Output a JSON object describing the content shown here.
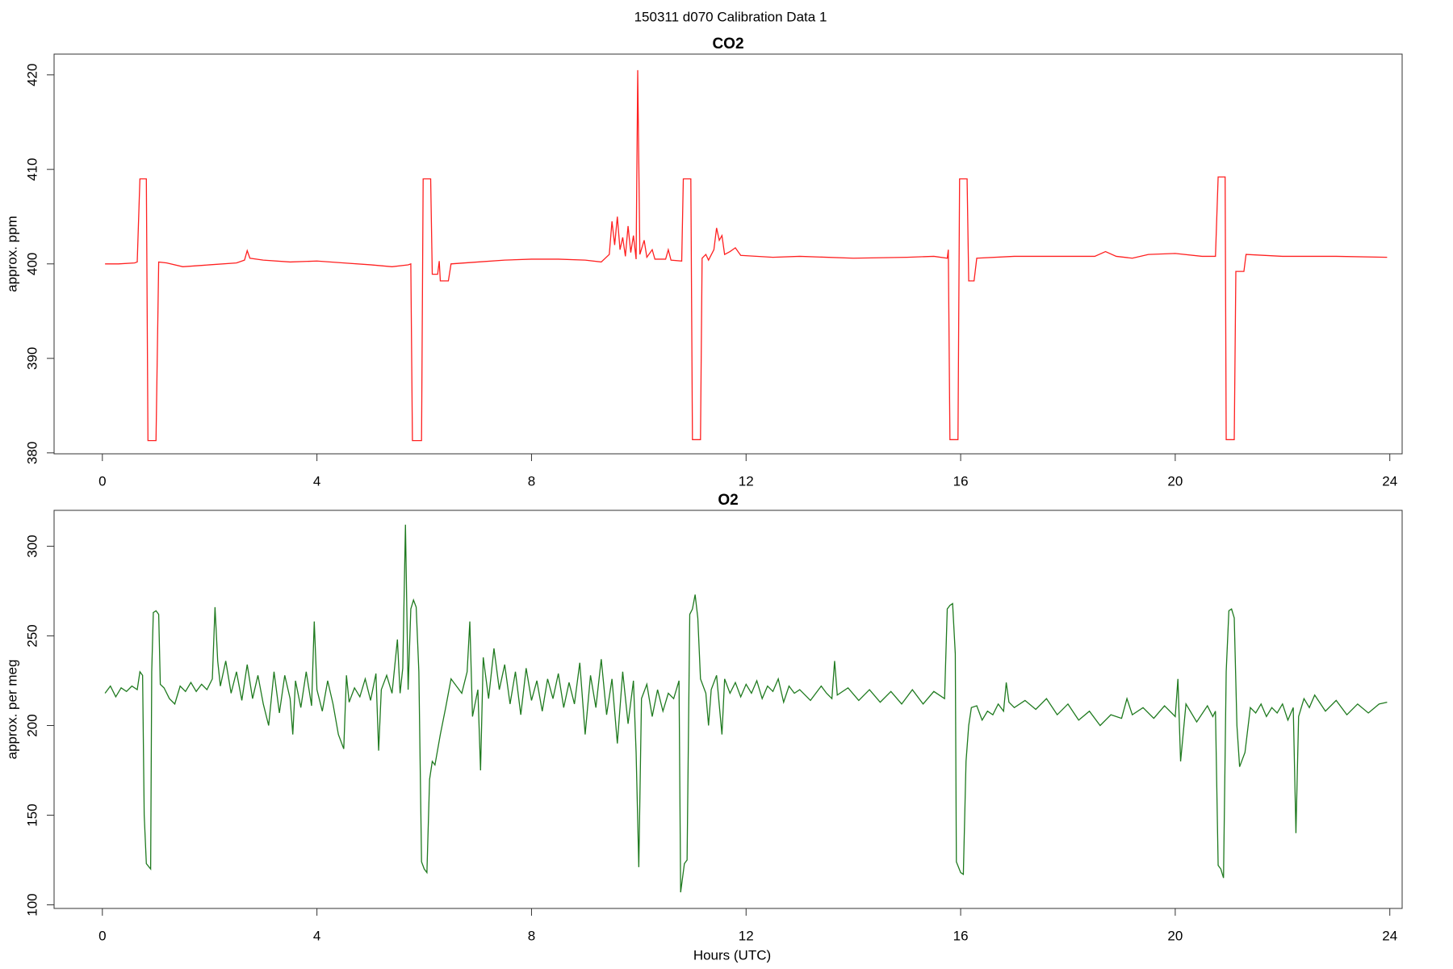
{
  "title": "150311   d070   Calibration Data 1",
  "chart_data": [
    {
      "type": "line",
      "title": "CO2",
      "y_label": "approx. ppm",
      "color": "#ff2020",
      "xlim": [
        -0.9,
        24.23
      ],
      "ylim": [
        379.9,
        422.2
      ],
      "xticks": [
        0,
        4,
        8,
        12,
        16,
        20,
        24
      ],
      "yticks": [
        380,
        390,
        400,
        410,
        420
      ],
      "x": [
        0.05,
        0.3,
        0.6,
        0.65,
        0.7,
        0.82,
        0.85,
        1.0,
        1.05,
        1.2,
        1.5,
        2.0,
        2.5,
        2.65,
        2.7,
        2.75,
        3.0,
        3.5,
        4.0,
        4.5,
        5.0,
        5.4,
        5.7,
        5.75,
        5.78,
        5.95,
        5.98,
        6.12,
        6.15,
        6.25,
        6.28,
        6.3,
        6.45,
        6.5,
        7.0,
        7.5,
        8.0,
        8.5,
        9.0,
        9.3,
        9.45,
        9.5,
        9.55,
        9.6,
        9.65,
        9.7,
        9.75,
        9.8,
        9.85,
        9.9,
        9.95,
        9.98,
        10.02,
        10.1,
        10.15,
        10.25,
        10.3,
        10.5,
        10.55,
        10.6,
        10.8,
        10.83,
        10.97,
        11.0,
        11.15,
        11.18,
        11.25,
        11.3,
        11.4,
        11.45,
        11.5,
        11.55,
        11.6,
        11.7,
        11.8,
        11.9,
        12.5,
        13,
        14,
        15,
        15.5,
        15.75,
        15.77,
        15.8,
        15.95,
        15.98,
        16.12,
        16.15,
        16.25,
        16.3,
        17,
        18,
        18.5,
        18.7,
        18.9,
        19.2,
        19.5,
        20,
        20.5,
        20.75,
        20.8,
        20.93,
        20.95,
        21.1,
        21.13,
        21.28,
        21.32,
        22,
        23,
        23.95
      ],
      "values": [
        400,
        400,
        400.1,
        400.2,
        409,
        409,
        381.3,
        381.3,
        400.2,
        400.1,
        399.7,
        399.9,
        400.1,
        400.4,
        401.4,
        400.6,
        400.4,
        400.2,
        400.3,
        400.1,
        399.9,
        399.7,
        399.9,
        400,
        381.3,
        381.3,
        409,
        409,
        398.9,
        398.9,
        400.3,
        398.2,
        398.2,
        400,
        400.2,
        400.4,
        400.5,
        400.5,
        400.4,
        400.2,
        401,
        404.5,
        402,
        405,
        401.5,
        402.8,
        400.8,
        404,
        401.2,
        403,
        400.5,
        420.5,
        401,
        402.5,
        400.7,
        401.5,
        400.5,
        400.5,
        401.5,
        400.4,
        400.3,
        409,
        409,
        381.4,
        381.4,
        400.6,
        401,
        400.4,
        401.5,
        403.8,
        402.5,
        403,
        401,
        401.3,
        401.7,
        400.9,
        400.7,
        400.8,
        400.6,
        400.7,
        400.8,
        400.6,
        401.5,
        381.4,
        381.4,
        409,
        409,
        398.2,
        398.2,
        400.6,
        400.8,
        400.8,
        400.8,
        401.3,
        400.8,
        400.6,
        401,
        401.1,
        400.8,
        400.8,
        409.2,
        409.2,
        381.4,
        381.4,
        399.2,
        399.2,
        401,
        400.8,
        400.8,
        400.7
      ]
    },
    {
      "type": "line",
      "title": "O2",
      "y_label": "approx. per meg",
      "x_label": "Hours (UTC)",
      "color": "#1f7a1f",
      "xlim": [
        -0.9,
        24.23
      ],
      "ylim": [
        98,
        320
      ],
      "xticks": [
        0,
        4,
        8,
        12,
        16,
        20,
        24
      ],
      "yticks": [
        100,
        150,
        200,
        250,
        300
      ],
      "x": [
        0.05,
        0.15,
        0.25,
        0.35,
        0.45,
        0.55,
        0.65,
        0.7,
        0.75,
        0.78,
        0.82,
        0.9,
        0.92,
        0.95,
        1.0,
        1.05,
        1.08,
        1.15,
        1.25,
        1.35,
        1.45,
        1.55,
        1.65,
        1.75,
        1.85,
        1.95,
        2.05,
        2.1,
        2.15,
        2.2,
        2.3,
        2.4,
        2.5,
        2.6,
        2.7,
        2.8,
        2.9,
        3.0,
        3.1,
        3.2,
        3.3,
        3.4,
        3.5,
        3.55,
        3.6,
        3.7,
        3.8,
        3.9,
        3.95,
        4.0,
        4.1,
        4.2,
        4.3,
        4.4,
        4.5,
        4.55,
        4.6,
        4.7,
        4.8,
        4.9,
        5.0,
        5.1,
        5.15,
        5.2,
        5.3,
        5.4,
        5.5,
        5.55,
        5.6,
        5.65,
        5.7,
        5.75,
        5.8,
        5.85,
        5.9,
        5.95,
        6.0,
        6.05,
        6.1,
        6.15,
        6.2,
        6.3,
        6.4,
        6.5,
        6.6,
        6.7,
        6.8,
        6.85,
        6.9,
        7.0,
        7.05,
        7.1,
        7.2,
        7.3,
        7.4,
        7.5,
        7.6,
        7.7,
        7.8,
        7.9,
        8.0,
        8.1,
        8.2,
        8.3,
        8.4,
        8.5,
        8.6,
        8.7,
        8.8,
        8.9,
        9.0,
        9.1,
        9.2,
        9.3,
        9.4,
        9.5,
        9.6,
        9.7,
        9.8,
        9.9,
        9.95,
        10.0,
        10.05,
        10.15,
        10.25,
        10.35,
        10.45,
        10.55,
        10.65,
        10.75,
        10.78,
        10.85,
        10.9,
        10.95,
        11.0,
        11.05,
        11.1,
        11.15,
        11.25,
        11.3,
        11.35,
        11.45,
        11.55,
        11.6,
        11.7,
        11.8,
        11.9,
        12.0,
        12.1,
        12.2,
        12.3,
        12.4,
        12.5,
        12.6,
        12.7,
        12.8,
        12.9,
        13.0,
        13.2,
        13.4,
        13.5,
        13.6,
        13.65,
        13.7,
        13.9,
        14.1,
        14.3,
        14.5,
        14.7,
        14.9,
        15.1,
        15.3,
        15.5,
        15.7,
        15.75,
        15.8,
        15.85,
        15.9,
        15.92,
        16.0,
        16.05,
        16.1,
        16.15,
        16.2,
        16.3,
        16.4,
        16.5,
        16.6,
        16.7,
        16.8,
        16.85,
        16.9,
        17.0,
        17.2,
        17.4,
        17.6,
        17.8,
        18.0,
        18.2,
        18.4,
        18.6,
        18.8,
        19.0,
        19.1,
        19.2,
        19.4,
        19.6,
        19.8,
        20.0,
        20.05,
        20.1,
        20.2,
        20.4,
        20.6,
        20.7,
        20.75,
        20.8,
        20.85,
        20.9,
        20.95,
        21.0,
        21.05,
        21.1,
        21.15,
        21.2,
        21.3,
        21.4,
        21.5,
        21.6,
        21.7,
        21.8,
        21.9,
        22.0,
        22.1,
        22.2,
        22.25,
        22.3,
        22.4,
        22.5,
        22.6,
        22.8,
        23.0,
        23.2,
        23.4,
        23.6,
        23.8,
        23.95
      ],
      "values": [
        218,
        222,
        216,
        221,
        219,
        222,
        220,
        230,
        228,
        150,
        123,
        120,
        230,
        263,
        264,
        262,
        223,
        221,
        215,
        212,
        222,
        219,
        224,
        219,
        223,
        220,
        226,
        266,
        236,
        222,
        236,
        218,
        230,
        214,
        234,
        215,
        228,
        212,
        200,
        230,
        207,
        228,
        215,
        195,
        225,
        210,
        230,
        211,
        258,
        220,
        208,
        225,
        212,
        195,
        187,
        228,
        213,
        221,
        216,
        226,
        214,
        229,
        186,
        220,
        228,
        218,
        248,
        218,
        232,
        312,
        220,
        265,
        270,
        266,
        230,
        124,
        120,
        118,
        170,
        180,
        178,
        195,
        210,
        226,
        222,
        218,
        230,
        258,
        205,
        220,
        175,
        238,
        215,
        243,
        220,
        234,
        212,
        230,
        206,
        232,
        214,
        225,
        208,
        226,
        215,
        229,
        210,
        224,
        212,
        235,
        195,
        228,
        210,
        237,
        206,
        226,
        190,
        230,
        201,
        225,
        185,
        121,
        215,
        223,
        205,
        220,
        208,
        218,
        215,
        225,
        107,
        123,
        125,
        262,
        265,
        273,
        260,
        226,
        218,
        200,
        220,
        228,
        195,
        226,
        218,
        224,
        216,
        223,
        218,
        225,
        215,
        222,
        219,
        226,
        213,
        222,
        218,
        220,
        214,
        222,
        218,
        215,
        236,
        217,
        221,
        214,
        220,
        213,
        219,
        212,
        220,
        212,
        219,
        215,
        265,
        267,
        268,
        240,
        124,
        118,
        117,
        180,
        200,
        210,
        211,
        203,
        208,
        206,
        212,
        208,
        224,
        213,
        210,
        214,
        209,
        215,
        206,
        212,
        203,
        208,
        200,
        206,
        204,
        215,
        206,
        210,
        204,
        211,
        205,
        226,
        180,
        212,
        202,
        211,
        205,
        208,
        122,
        120,
        115,
        230,
        264,
        265,
        260,
        200,
        177,
        185,
        210,
        207,
        212,
        205,
        210,
        207,
        212,
        203,
        210,
        140,
        205,
        215,
        210,
        217,
        208,
        214,
        206,
        212,
        207,
        212,
        213
      ]
    }
  ]
}
